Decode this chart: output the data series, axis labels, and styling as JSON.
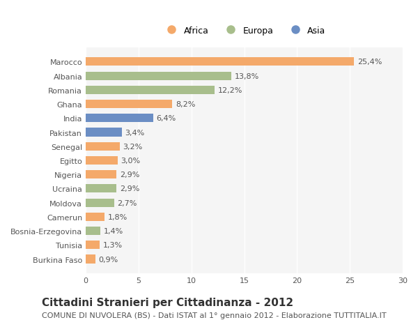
{
  "countries": [
    "Marocco",
    "Albania",
    "Romania",
    "Ghana",
    "India",
    "Pakistan",
    "Senegal",
    "Egitto",
    "Nigeria",
    "Ucraina",
    "Moldova",
    "Camerun",
    "Bosnia-Erzegovina",
    "Tunisia",
    "Burkina Faso"
  ],
  "values": [
    25.4,
    13.8,
    12.2,
    8.2,
    6.4,
    3.4,
    3.2,
    3.0,
    2.9,
    2.9,
    2.7,
    1.8,
    1.4,
    1.3,
    0.9
  ],
  "continents": [
    "Africa",
    "Europa",
    "Europa",
    "Africa",
    "Asia",
    "Asia",
    "Africa",
    "Africa",
    "Africa",
    "Europa",
    "Europa",
    "Africa",
    "Europa",
    "Africa",
    "Africa"
  ],
  "labels": [
    "25,4%",
    "13,8%",
    "12,2%",
    "8,2%",
    "6,4%",
    "3,4%",
    "3,2%",
    "3,0%",
    "2,9%",
    "2,9%",
    "2,7%",
    "1,8%",
    "1,4%",
    "1,3%",
    "0,9%"
  ],
  "colors": {
    "Africa": "#F4A96A",
    "Europa": "#A8BE8C",
    "Asia": "#6B8EC4"
  },
  "background_color": "#FFFFFF",
  "bar_background": "#F5F5F5",
  "grid_color": "#FFFFFF",
  "xlim": [
    0,
    30
  ],
  "xticks": [
    0,
    5,
    10,
    15,
    20,
    25,
    30
  ],
  "title": "Cittadini Stranieri per Cittadinanza - 2012",
  "subtitle": "COMUNE DI NUVOLERA (BS) - Dati ISTAT al 1° gennaio 2012 - Elaborazione TUTTITALIA.IT",
  "title_fontsize": 11,
  "subtitle_fontsize": 8,
  "label_fontsize": 8,
  "tick_fontsize": 8,
  "legend_fontsize": 9
}
